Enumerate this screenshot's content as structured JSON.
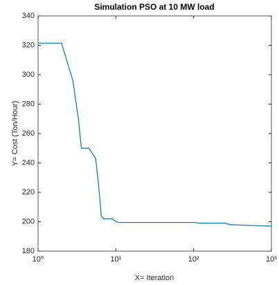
{
  "chart_data": {
    "type": "line",
    "title": "Simulation PSO at 10 MW load",
    "x_label": "X= Iteration",
    "y_label": "Y= Cost (Ton/Hour)",
    "x": [
      1,
      2,
      2.8,
      3.3,
      3.6,
      4.5,
      5.5,
      6,
      6.5,
      7,
      9,
      10,
      11,
      100,
      120,
      250,
      300,
      500,
      1000
    ],
    "series": [
      {
        "name": "Cost",
        "color": "#0072bd",
        "values": [
          321.5,
          321.5,
          296,
          270,
          250,
          250,
          243,
          225,
          204,
          202,
          202,
          200,
          199.5,
          199.5,
          199,
          199,
          198,
          197.5,
          197
        ]
      }
    ],
    "xlim": [
      1,
      1000
    ],
    "xscale": "log",
    "xticks": [
      {
        "value": 1,
        "label": "10⁰"
      },
      {
        "value": 10,
        "label": "10¹"
      },
      {
        "value": 100,
        "label": "10²"
      },
      {
        "value": 1000,
        "label": "10³"
      }
    ],
    "ylim": [
      180,
      340
    ],
    "yticks": [
      180,
      200,
      220,
      240,
      260,
      280,
      300,
      320,
      340
    ]
  }
}
